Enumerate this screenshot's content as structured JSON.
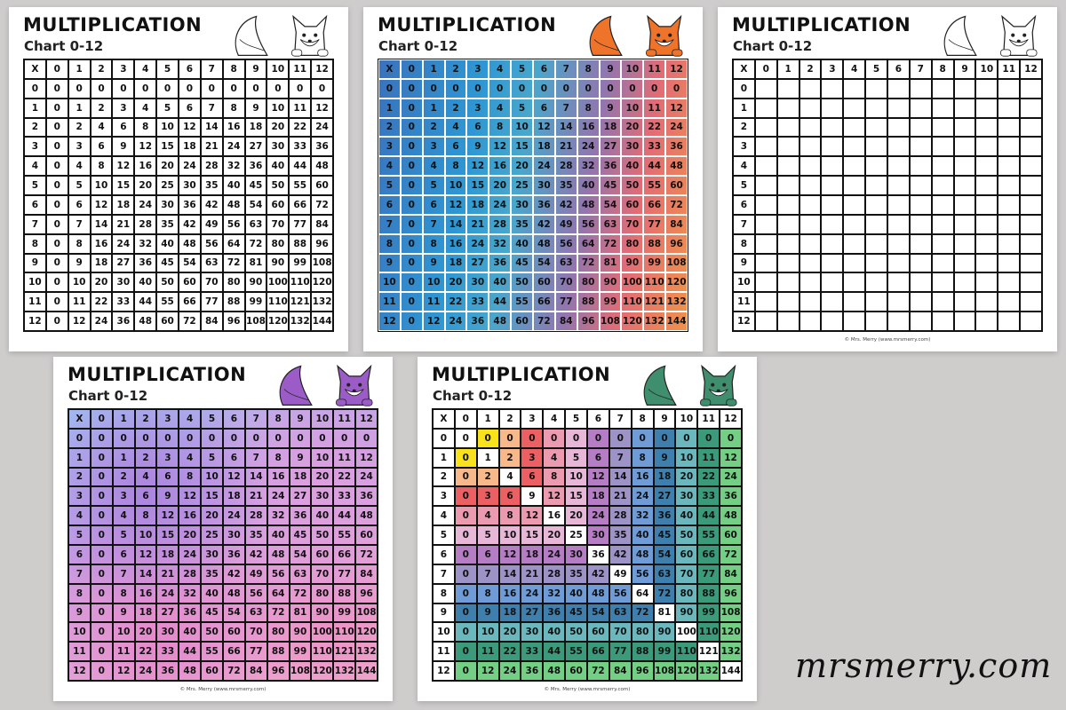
{
  "sheet_title": "MULTIPLICATION",
  "sheet_subtitle": "Chart 0-12",
  "footer": "© Mrs. Merry (www.mrsmerry.com)",
  "watermark": "mrsmerry.com",
  "corner_label": "X",
  "headers": [
    "0",
    "1",
    "2",
    "3",
    "4",
    "5",
    "6",
    "7",
    "8",
    "9",
    "10",
    "11",
    "12"
  ],
  "table": [
    [
      0,
      0,
      0,
      0,
      0,
      0,
      0,
      0,
      0,
      0,
      0,
      0,
      0
    ],
    [
      0,
      1,
      2,
      3,
      4,
      5,
      6,
      7,
      8,
      9,
      10,
      11,
      12
    ],
    [
      0,
      2,
      4,
      6,
      8,
      10,
      12,
      14,
      16,
      18,
      20,
      22,
      24
    ],
    [
      0,
      3,
      6,
      9,
      12,
      15,
      18,
      21,
      24,
      27,
      30,
      33,
      36
    ],
    [
      0,
      4,
      8,
      12,
      16,
      20,
      24,
      28,
      32,
      36,
      40,
      44,
      48
    ],
    [
      0,
      5,
      10,
      15,
      20,
      25,
      30,
      35,
      40,
      45,
      50,
      55,
      60
    ],
    [
      0,
      6,
      12,
      18,
      24,
      30,
      36,
      42,
      48,
      54,
      60,
      66,
      72
    ],
    [
      0,
      7,
      14,
      21,
      28,
      35,
      42,
      49,
      56,
      63,
      70,
      77,
      84
    ],
    [
      0,
      8,
      16,
      24,
      32,
      40,
      48,
      56,
      64,
      72,
      80,
      88,
      96
    ],
    [
      0,
      9,
      18,
      27,
      36,
      45,
      54,
      63,
      72,
      81,
      90,
      99,
      108
    ],
    [
      0,
      10,
      20,
      30,
      40,
      50,
      60,
      70,
      80,
      90,
      100,
      110,
      120
    ],
    [
      0,
      11,
      22,
      33,
      44,
      55,
      66,
      77,
      88,
      99,
      110,
      121,
      132
    ],
    [
      0,
      12,
      24,
      36,
      48,
      60,
      72,
      84,
      96,
      108,
      120,
      132,
      144
    ]
  ],
  "rainbow_colors": [
    "#ffffff",
    "#f7e21b",
    "#f7b98a",
    "#ec5f63",
    "#ec9ab0",
    "#e8b7d8",
    "#b57dc4",
    "#9d93c6",
    "#6f9bd6",
    "#3f7fae",
    "#6ab8be",
    "#3a9a7a",
    "#72cf84"
  ],
  "sheets": [
    {
      "style": "white",
      "filled": true,
      "fox_color": "#ffffff",
      "footer": false
    },
    {
      "style": "blue",
      "filled": true,
      "fox_color": "#f0732a",
      "footer": false
    },
    {
      "style": "blank",
      "filled": false,
      "fox_color": "#ffffff",
      "footer": true
    },
    {
      "style": "purple",
      "filled": true,
      "fox_color": "#9b5cc8",
      "footer": true
    },
    {
      "style": "rainbow",
      "filled": true,
      "fox_color": "#3f8f6f",
      "footer": true
    }
  ]
}
